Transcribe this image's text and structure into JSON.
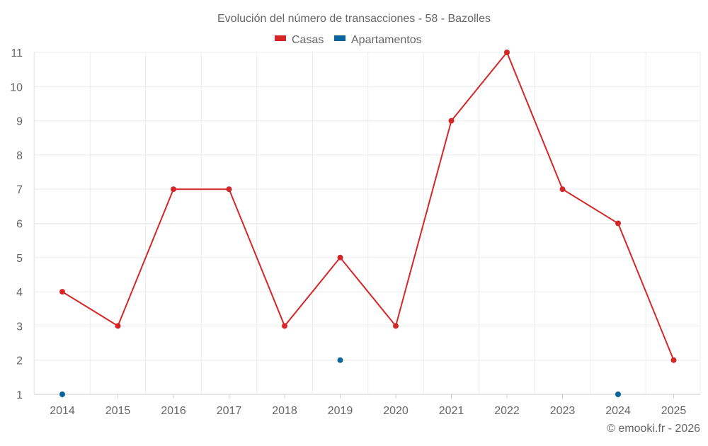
{
  "chart_data": {
    "type": "line",
    "title": "Evolución del número de transacciones - 58 - Bazolles",
    "xlabel": "",
    "ylabel": "",
    "categories": [
      "2014",
      "2015",
      "2016",
      "2017",
      "2018",
      "2019",
      "2020",
      "2021",
      "2022",
      "2023",
      "2024",
      "2025"
    ],
    "ylim": [
      1,
      11
    ],
    "yticks": [
      1,
      2,
      3,
      4,
      5,
      6,
      7,
      8,
      9,
      10,
      11
    ],
    "grid": true,
    "legend_position": "top",
    "series": [
      {
        "name": "Casas",
        "color": "#d62728",
        "values": [
          4,
          3,
          7,
          7,
          3,
          5,
          3,
          9,
          11,
          7,
          6,
          2
        ]
      },
      {
        "name": "Apartamentos",
        "color": "#08669c",
        "values": [
          1,
          null,
          null,
          null,
          null,
          2,
          null,
          null,
          null,
          null,
          1,
          null
        ]
      }
    ]
  },
  "credit": "© emooki.fr - 2026"
}
